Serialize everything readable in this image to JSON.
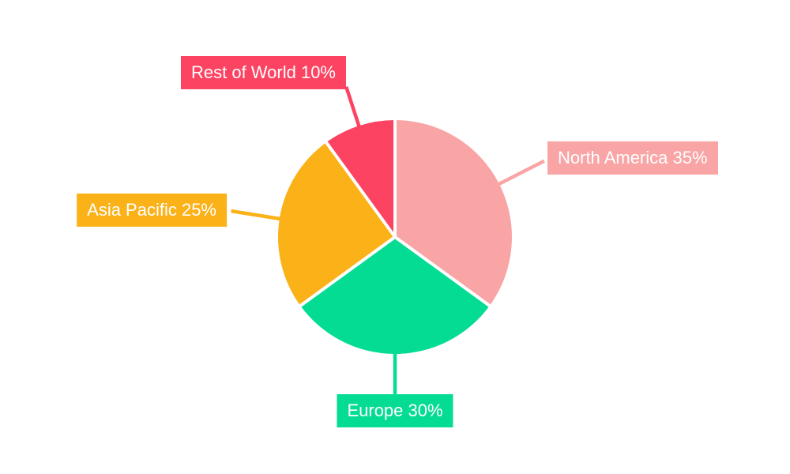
{
  "chart_data": {
    "type": "pie",
    "title": "",
    "categories": [
      "North America",
      "Europe",
      "Asia Pacific",
      "Rest of World"
    ],
    "values": [
      35,
      30,
      25,
      10
    ],
    "unit": "%",
    "start_angle_deg_from_top": 0,
    "direction": "clockwise",
    "legend_position": "outside-callout-labels",
    "background_color": "#FFFFFF",
    "slice_gap_color": "#FFFFFF",
    "label_text_color": "#FFFFFF",
    "slices": [
      {
        "label": "North America",
        "value": 35,
        "display_label": "North America 35%",
        "color": "#F9A5A6"
      },
      {
        "label": "Europe",
        "value": 30,
        "display_label": "Europe 30%",
        "color": "#05DC93"
      },
      {
        "label": "Asia Pacific",
        "value": 25,
        "display_label": "Asia Pacific 25%",
        "color": "#FBB118"
      },
      {
        "label": "Rest of World",
        "value": 10,
        "display_label": "Rest of World 10%",
        "color": "#FC4362"
      }
    ]
  }
}
